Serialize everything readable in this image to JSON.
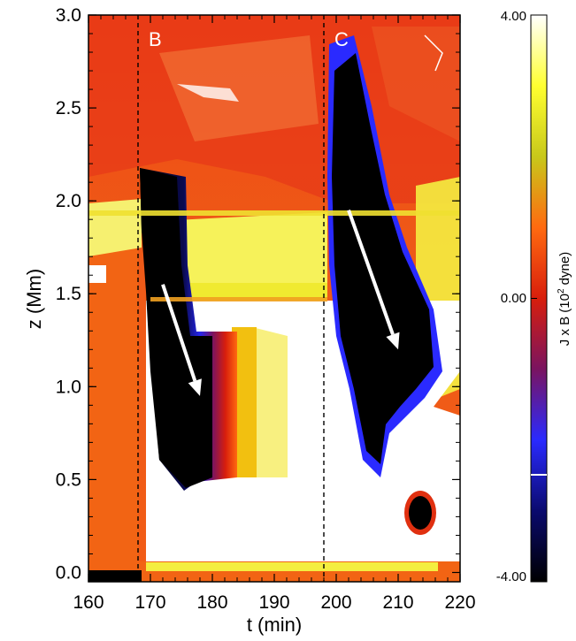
{
  "chart_data": {
    "type": "heatmap",
    "xlabel": "t (min)",
    "ylabel": "z (Mm)",
    "xlim": [
      160,
      220
    ],
    "ylim": [
      -0.05,
      3.0
    ],
    "x_ticks": [
      "160",
      "170",
      "180",
      "190",
      "200",
      "210",
      "220"
    ],
    "y_ticks": [
      "0.0",
      "0.5",
      "1.0",
      "1.5",
      "2.0",
      "2.5",
      "3.0"
    ],
    "x_tick_values": [
      160,
      170,
      180,
      190,
      200,
      210,
      220
    ],
    "y_tick_values": [
      0.0,
      0.5,
      1.0,
      1.5,
      2.0,
      2.5,
      3.0
    ],
    "colorbar": {
      "label_main": "J x B (10",
      "label_sup": "2",
      "label_end": " dyne)",
      "max_label": "4.00",
      "mid_label": "0.00",
      "min_label": "-4.00",
      "range": [
        -4.0,
        4.0
      ],
      "colors": [
        "#000000",
        "#0a0a6e",
        "#2a2aff",
        "#7a1460",
        "#d81e0c",
        "#ff6a10",
        "#c8c81a",
        "#ffff30",
        "#ffffff"
      ]
    },
    "event_lines": [
      {
        "label": "B",
        "t": 168
      },
      {
        "label": "C",
        "t": 198
      }
    ],
    "arrows": [
      {
        "from": {
          "t": 172,
          "z": 1.55
        },
        "to": {
          "t": 178,
          "z": 0.95
        }
      },
      {
        "from": {
          "t": 202,
          "z": 1.95
        },
        "to": {
          "t": 210,
          "z": 1.2
        }
      }
    ]
  }
}
